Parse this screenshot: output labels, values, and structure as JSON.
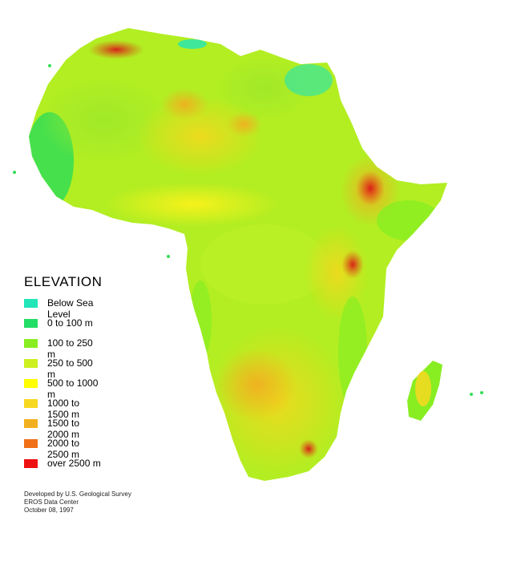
{
  "legend": {
    "title": "ELEVATION",
    "items": [
      {
        "label": "Below Sea Level",
        "color": "#22e5b8"
      },
      {
        "label": "0 to 100 m",
        "color": "#22dd66"
      },
      {
        "label": "100 to 250 m",
        "color": "#88ee22"
      },
      {
        "label": "250 to 500 m",
        "color": "#ccf020"
      },
      {
        "label": "500 to 1000 m",
        "color": "#ffff00"
      },
      {
        "label": "1000 to 1500 m",
        "color": "#f7d820"
      },
      {
        "label": "1500 to 2000 m",
        "color": "#f2b020"
      },
      {
        "label": "2000 to 2500 m",
        "color": "#f07018"
      },
      {
        "label": "over 2500 m",
        "color": "#ee1111"
      }
    ]
  },
  "credits": {
    "line1": "Developed by U.S. Geological Survey",
    "line2": "EROS Data Center",
    "line3": "October 08, 1997"
  },
  "map": {
    "region": "Africa",
    "ocean_color": "#ffffff"
  }
}
